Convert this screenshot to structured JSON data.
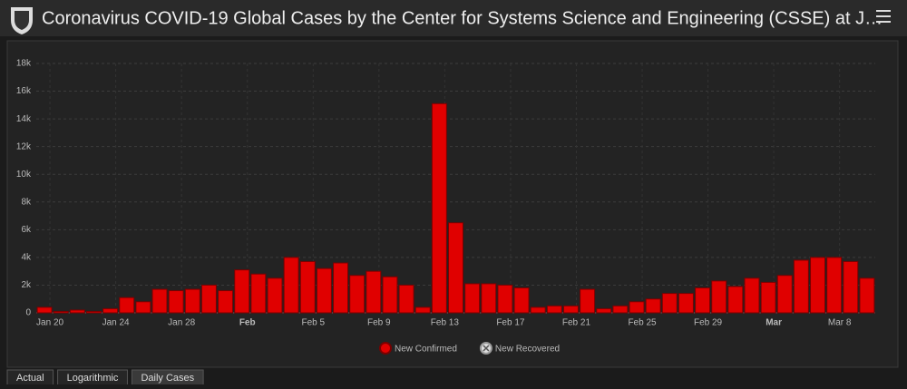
{
  "header": {
    "title": "Coronavirus COVID-19 Global Cases by the Center for Systems Science and Engineering (CSSE) at J…"
  },
  "chart_data": {
    "type": "bar",
    "categories": [
      "Jan 20",
      null,
      null,
      null,
      "Jan 24",
      null,
      null,
      null,
      "Jan 28",
      null,
      null,
      null,
      "Feb",
      null,
      null,
      null,
      "Feb 5",
      null,
      null,
      null,
      "Feb 9",
      null,
      null,
      null,
      "Feb 13",
      null,
      null,
      null,
      "Feb 17",
      null,
      null,
      null,
      "Feb 21",
      null,
      null,
      null,
      "Feb 25",
      null,
      null,
      null,
      "Feb 29",
      null,
      null,
      null,
      "Mar",
      null,
      null,
      null,
      "Mar 8",
      null,
      null
    ],
    "series": [
      {
        "name": "New Confirmed",
        "color": "#e00000",
        "values": [
          400,
          100,
          200,
          100,
          300,
          1100,
          800,
          1700,
          1600,
          1700,
          2000,
          1600,
          3100,
          2800,
          2500,
          4000,
          3700,
          3200,
          3600,
          2700,
          3000,
          2600,
          2000,
          400,
          15100,
          6500,
          2100,
          2100,
          2000,
          1800,
          400,
          500,
          500,
          1700,
          300,
          500,
          800,
          1000,
          1400,
          1400,
          1800,
          2300,
          1900,
          2500,
          2200,
          2700,
          3800,
          4000,
          4000,
          3700,
          2500
        ]
      },
      {
        "name": "New Recovered",
        "color": "#dddddd",
        "visible": false,
        "values": [
          null,
          null,
          null,
          null,
          null,
          null,
          null,
          null,
          null,
          null,
          null,
          null,
          null,
          null,
          null,
          null,
          null,
          null,
          null,
          null,
          null,
          null,
          null,
          null,
          null,
          null,
          null,
          null,
          null,
          null,
          null,
          null,
          null,
          null,
          null,
          null,
          null,
          null,
          null,
          null,
          null,
          null,
          null,
          null,
          null,
          null,
          null,
          null,
          null,
          null,
          null
        ]
      }
    ],
    "ylim": [
      0,
      18000
    ],
    "yticks": [
      0,
      {
        "value": 2000,
        "label": "2k"
      },
      {
        "value": 4000,
        "label": "4k"
      },
      {
        "value": 6000,
        "label": "6k"
      },
      {
        "value": 8000,
        "label": "8k"
      },
      {
        "value": 10000,
        "label": "10k"
      },
      {
        "value": 12000,
        "label": "12k"
      },
      {
        "value": 14000,
        "label": "14k"
      },
      {
        "value": 16000,
        "label": "16k"
      },
      {
        "value": 18000,
        "label": "18k"
      }
    ],
    "grid": true
  },
  "tabs": [
    "Actual",
    "Logarithmic",
    "Daily Cases"
  ]
}
